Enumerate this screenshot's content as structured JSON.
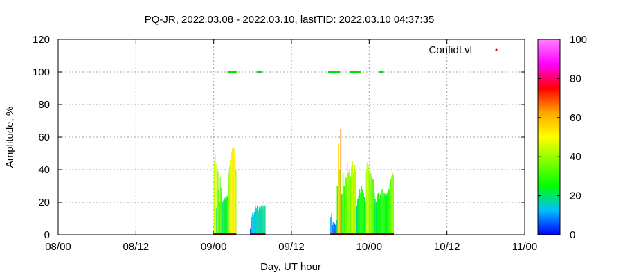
{
  "chart_data": {
    "type": "bar",
    "title": "PQ-JR, 2022.03.08 - 2022.03.10, lastTID: 2022.03.10 04:37:35",
    "xlabel": "Day, UT hour",
    "ylabel": "Amplitude, %",
    "xlim_hours": [
      0,
      72
    ],
    "ylim": [
      0,
      120
    ],
    "grid": true,
    "legend": {
      "placement": "top-right",
      "label": "ConfidLvl",
      "color": "#cc0000"
    },
    "x_ticks": [
      {
        "hour": 0,
        "label": "08/00"
      },
      {
        "hour": 12,
        "label": "08/12"
      },
      {
        "hour": 24,
        "label": "09/00"
      },
      {
        "hour": 36,
        "label": "09/12"
      },
      {
        "hour": 48,
        "label": "10/00"
      },
      {
        "hour": 60,
        "label": "10/12"
      },
      {
        "hour": 72,
        "label": "11/00"
      }
    ],
    "y_ticks": [
      "0",
      "20",
      "40",
      "60",
      "80",
      "100",
      "120"
    ],
    "colorbar": {
      "range": [
        0,
        100
      ],
      "ticks": [
        "0",
        "20",
        "40",
        "60",
        "80",
        "100"
      ],
      "colors": [
        "#0000ff",
        "#00bfff",
        "#00ff00",
        "#80ff00",
        "#ffff00",
        "#ffa500",
        "#ff0000",
        "#ff00ff",
        "#ff80ff"
      ]
    },
    "amplitude_series": [
      {
        "name": "",
        "hour_start": 24.0,
        "hour_end": 24.4,
        "values": [
          44,
          45,
          46,
          48,
          50,
          44
        ]
      },
      {
        "name": "",
        "hour_start": 24.4,
        "hour_end": 25.3,
        "values": [
          16,
          40,
          39,
          28,
          20,
          35,
          29,
          24
        ]
      },
      {
        "name": "",
        "hour_start": 25.3,
        "hour_end": 26.2,
        "values": [
          20,
          21,
          22,
          22,
          23,
          22,
          24,
          23,
          24
        ]
      },
      {
        "name": "",
        "hour_start": 26.2,
        "hour_end": 27.5,
        "values": [
          34,
          38,
          42,
          46,
          49,
          51,
          53,
          54,
          54,
          53,
          50,
          45,
          40
        ]
      },
      {
        "name": "",
        "hour_start": 29.6,
        "hour_end": 30.2,
        "values": [
          4,
          8,
          11,
          13,
          14,
          12
        ]
      },
      {
        "name": "",
        "hour_start": 30.2,
        "hour_end": 32.0,
        "values": [
          14,
          18,
          16,
          18,
          15,
          17,
          16,
          18,
          16,
          18,
          17,
          18
        ]
      },
      {
        "name": "",
        "hour_start": 42.0,
        "hour_end": 43.0,
        "values": [
          11,
          13,
          6,
          8,
          4,
          7,
          6,
          9
        ]
      },
      {
        "name": "",
        "hour_start": 43.0,
        "hour_end": 44.4,
        "values": [
          30,
          56,
          40,
          65,
          25,
          38,
          30,
          36
        ]
      },
      {
        "name": "",
        "hour_start": 44.4,
        "hour_end": 46.0,
        "values": [
          35,
          44,
          38,
          40,
          36,
          42,
          45,
          38,
          43,
          40
        ]
      },
      {
        "name": "",
        "hour_start": 46.0,
        "hour_end": 47.5,
        "values": [
          18,
          22,
          24,
          28,
          26,
          30,
          28,
          26,
          23,
          20
        ]
      },
      {
        "name": "",
        "hour_start": 47.5,
        "hour_end": 48.2,
        "values": [
          40,
          44,
          46,
          42,
          38,
          32
        ]
      },
      {
        "name": "",
        "hour_start": 48.2,
        "hour_end": 49.0,
        "values": [
          38,
          36,
          34,
          34,
          26,
          22
        ]
      },
      {
        "name": "",
        "hour_start": 49.0,
        "hour_end": 51.0,
        "values": [
          20,
          24,
          26,
          22,
          25,
          24,
          28,
          22,
          26,
          25,
          24,
          26,
          28
        ]
      },
      {
        "name": "",
        "hour_start": 51.0,
        "hour_end": 51.8,
        "values": [
          28,
          32,
          34,
          36,
          38,
          37
        ]
      }
    ],
    "confidence_points_hours": [
      [
        26.3,
        27.4
      ],
      [
        30.8,
        31.4
      ],
      [
        41.8,
        43.4
      ],
      [
        45.2,
        46.6
      ],
      [
        49.6,
        50.1
      ]
    ],
    "confidence_value": 100
  }
}
